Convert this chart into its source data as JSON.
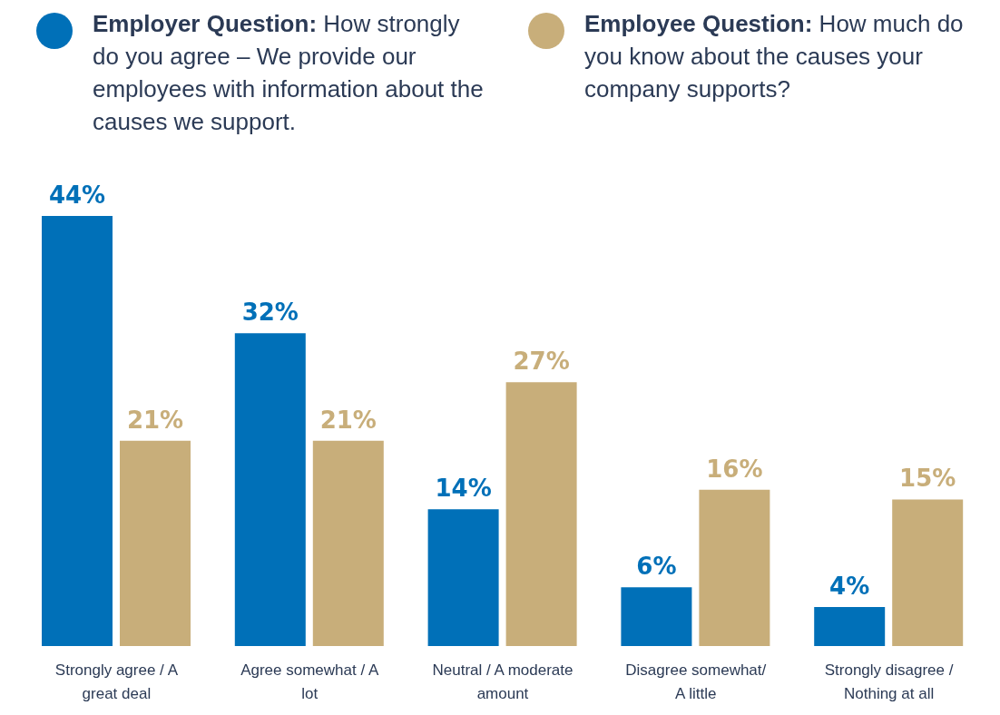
{
  "chart_data": {
    "type": "bar",
    "categories": [
      "Strongly agree / A great deal",
      "Agree somewhat / A lot",
      "Neutral / A moderate amount",
      "Disagree somewhat/ A little",
      "Strongly disagree / Nothing at all"
    ],
    "series": [
      {
        "name": "Employer Question: How strongly do you agree – We provide our employees with information about the causes we support.",
        "color": "#0070b8",
        "values": [
          44,
          32,
          14,
          6,
          4
        ],
        "value_labels": [
          "44%",
          "32%",
          "14%",
          "6%",
          "4%"
        ]
      },
      {
        "name": "Employee Question: How much do you know about the causes your company supports?",
        "color": "#c8ae7a",
        "values": [
          21,
          21,
          27,
          16,
          15
        ],
        "value_labels": [
          "21%",
          "21%",
          "27%",
          "16%",
          "15%"
        ]
      }
    ],
    "legend": "top",
    "grid": false
  }
}
